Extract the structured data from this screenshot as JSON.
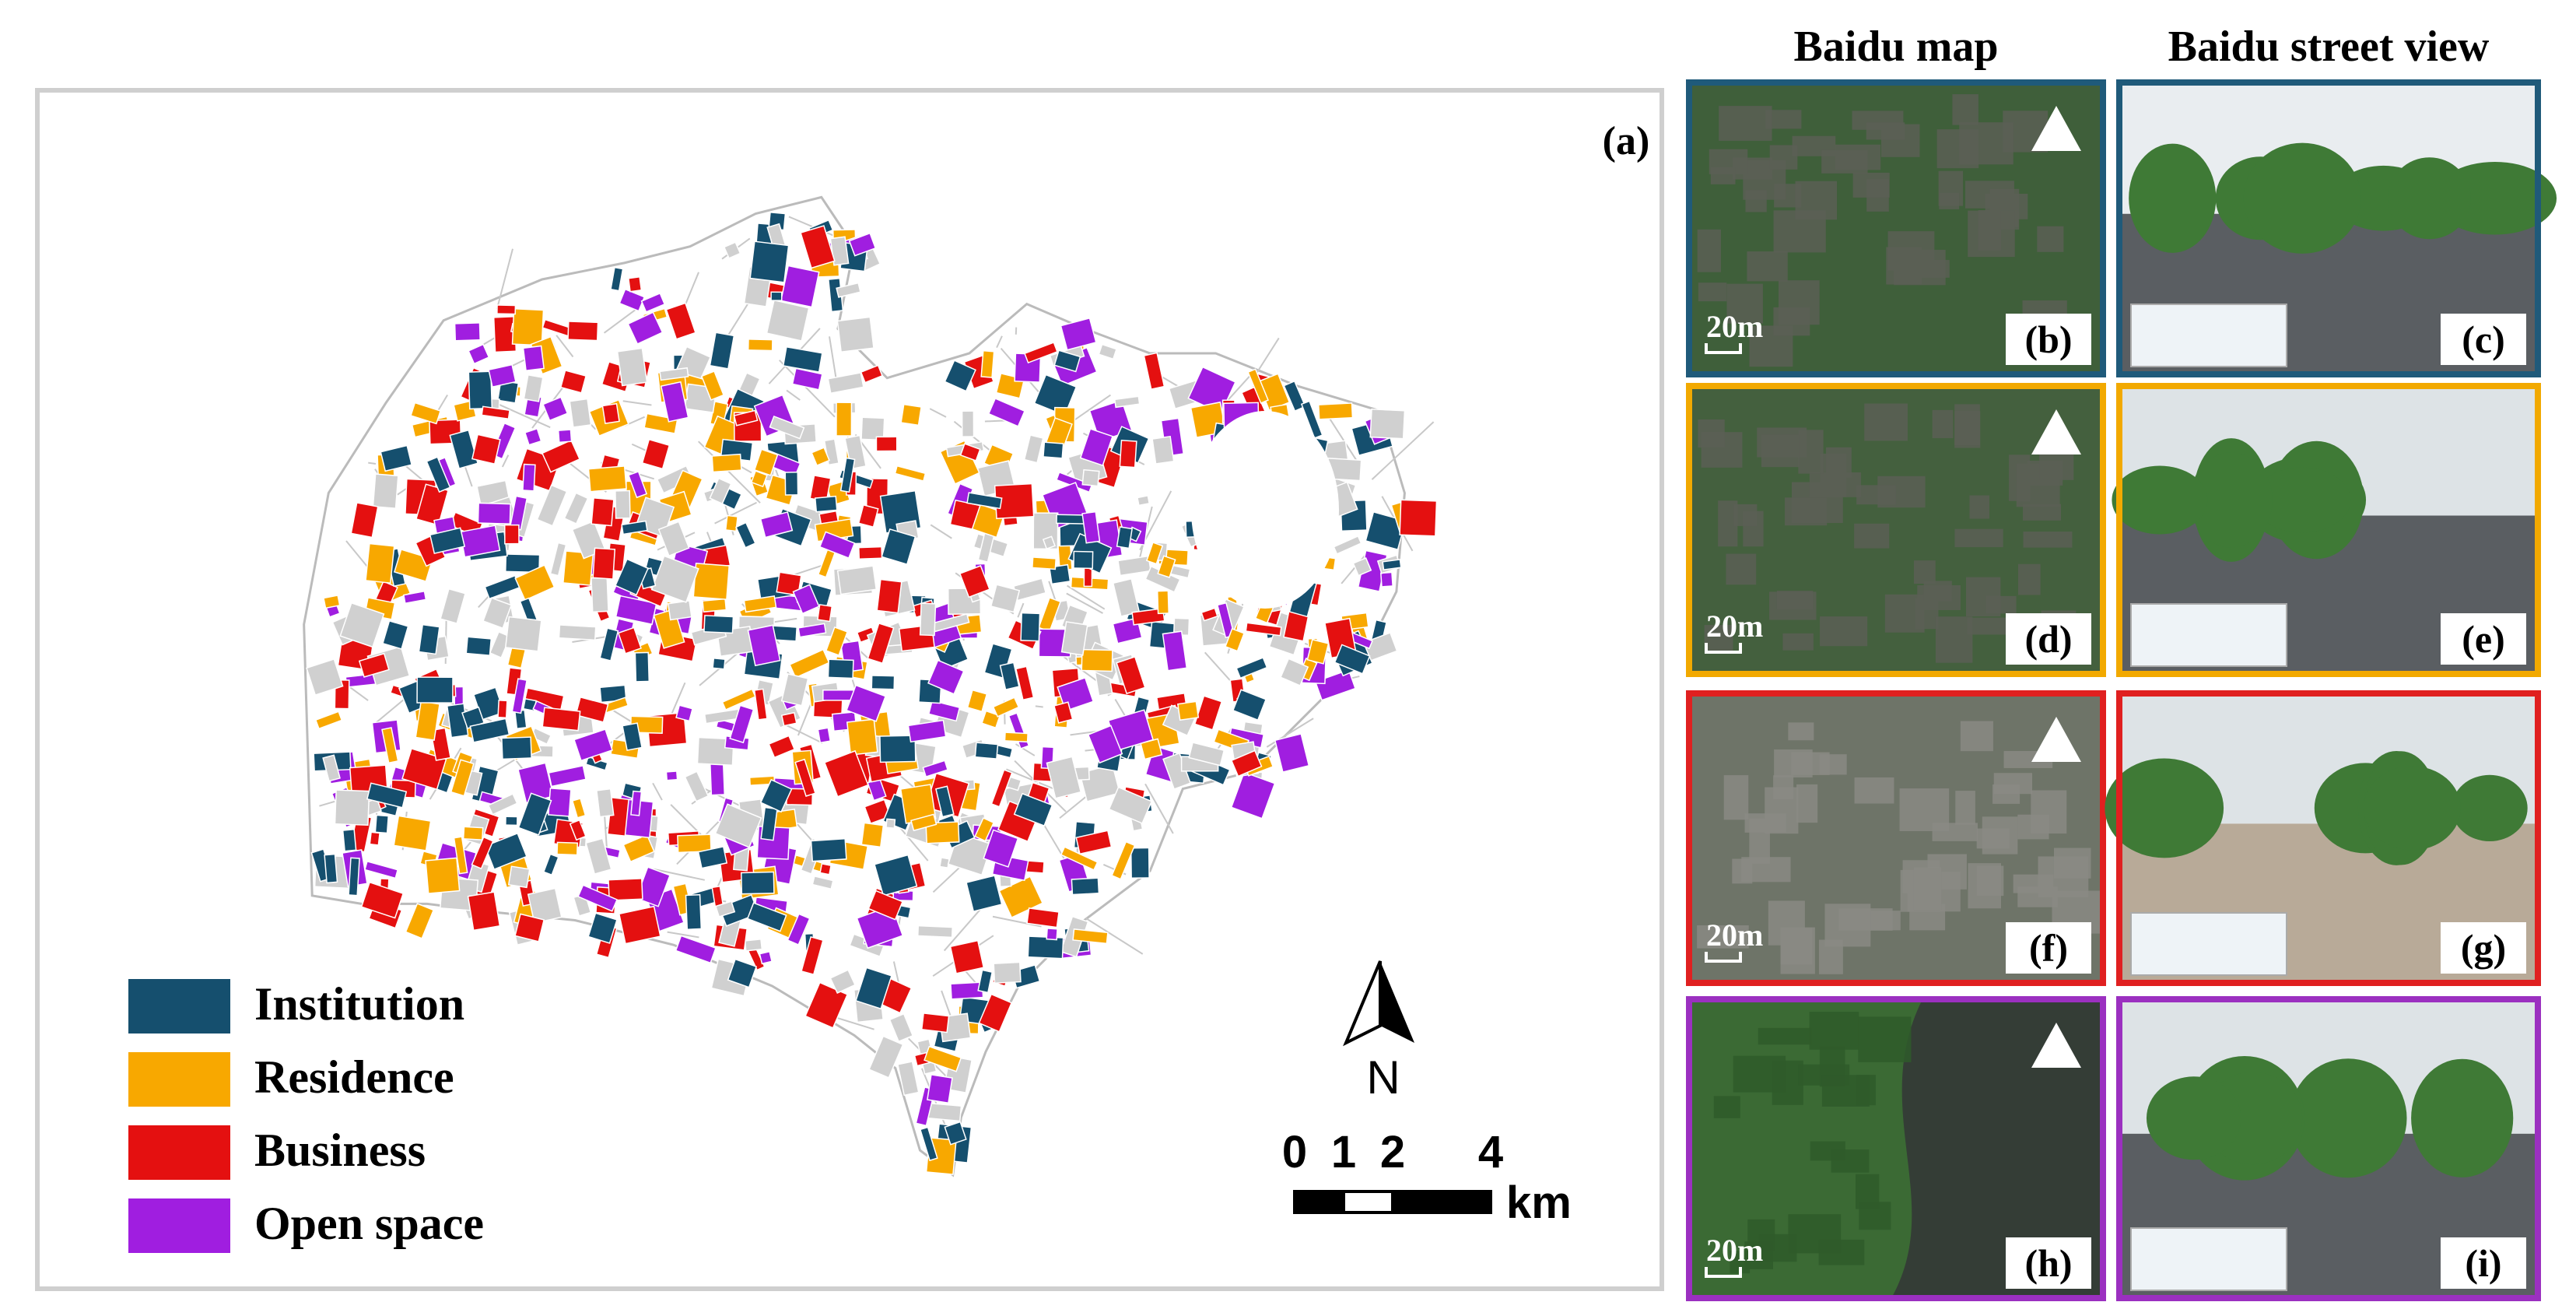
{
  "figure": {
    "panel_label": "(a)",
    "legend": [
      {
        "name": "Institution",
        "color": "#154f6e"
      },
      {
        "name": "Residence",
        "color": "#f8a800"
      },
      {
        "name": "Business",
        "color": "#e41010"
      },
      {
        "name": "Open space",
        "color": "#a01ee0"
      }
    ],
    "north": "N",
    "scale_bar": {
      "ticks": [
        0,
        1,
        2,
        4
      ],
      "unit": "km"
    },
    "columns": [
      "Baidu map",
      "Baidu street view"
    ],
    "rows": [
      {
        "color": "#1f5a7a",
        "map": {
          "label": "(b)",
          "scale": "20m"
        },
        "street": {
          "label": "(c)"
        }
      },
      {
        "color": "#f2a900",
        "map": {
          "label": "(d)",
          "scale": "20m"
        },
        "street": {
          "label": "(e)"
        }
      },
      {
        "color": "#e02020",
        "map": {
          "label": "(f)",
          "scale": "20m"
        },
        "street": {
          "label": "(g)"
        }
      },
      {
        "color": "#9b30c0",
        "map": {
          "label": "(h)",
          "scale": "20m"
        },
        "street": {
          "label": "(i)"
        }
      }
    ]
  }
}
